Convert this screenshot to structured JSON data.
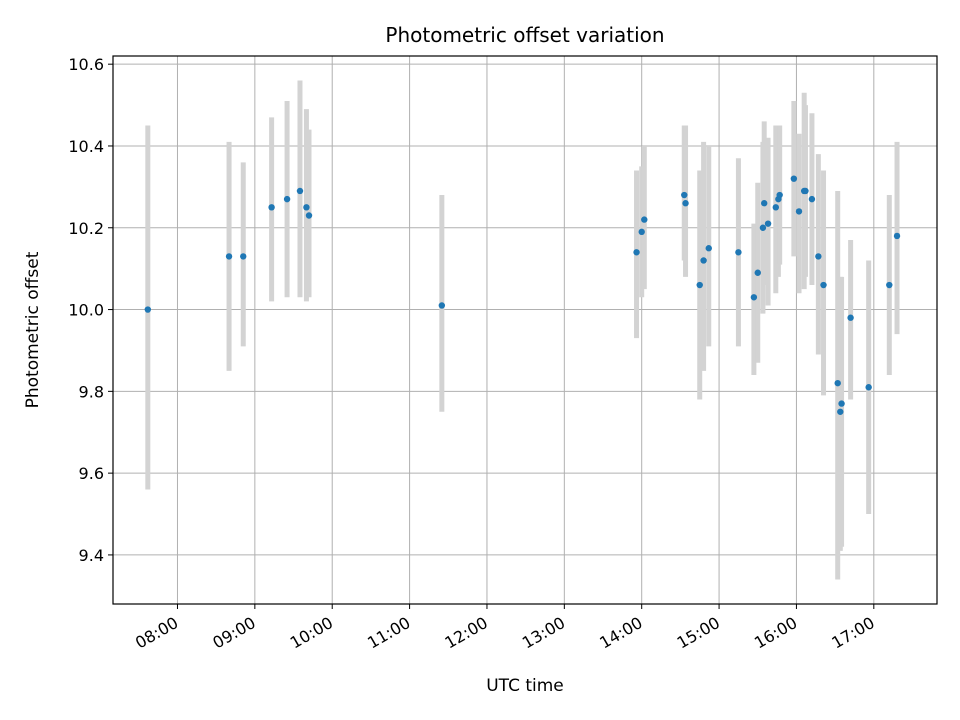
{
  "chart_data": {
    "type": "scatter",
    "title": "Photometric offset variation",
    "xlabel": "UTC time",
    "ylabel": "Photometric offset",
    "grid": true,
    "legend": "none",
    "x_tick_labels": [
      "08:00",
      "09:00",
      "10:00",
      "11:00",
      "12:00",
      "13:00",
      "14:00",
      "15:00",
      "16:00",
      "17:00"
    ],
    "y_tick_labels": [
      "9.4",
      "9.6",
      "9.8",
      "10.0",
      "10.2",
      "10.4",
      "10.6"
    ],
    "y_ticks": [
      9.4,
      9.6,
      9.8,
      10.0,
      10.2,
      10.4,
      10.6
    ],
    "xlim": [
      "07:10",
      "17:49"
    ],
    "ylim": [
      9.28,
      10.62
    ],
    "colors": {
      "point": "#1f77b4",
      "errorbar": "#d3d3d3",
      "grid": "#b0b0b0"
    },
    "points": [
      {
        "t": "07:37",
        "y": 10.0,
        "lo": 9.56,
        "hi": 10.45
      },
      {
        "t": "08:40",
        "y": 10.13,
        "lo": 9.85,
        "hi": 10.41
      },
      {
        "t": "08:51",
        "y": 10.13,
        "lo": 9.91,
        "hi": 10.36
      },
      {
        "t": "09:13",
        "y": 10.25,
        "lo": 10.02,
        "hi": 10.47
      },
      {
        "t": "09:25",
        "y": 10.27,
        "lo": 10.03,
        "hi": 10.51
      },
      {
        "t": "09:35",
        "y": 10.29,
        "lo": 10.03,
        "hi": 10.56
      },
      {
        "t": "09:40",
        "y": 10.25,
        "lo": 10.02,
        "hi": 10.49
      },
      {
        "t": "09:42",
        "y": 10.23,
        "lo": 10.03,
        "hi": 10.44
      },
      {
        "t": "11:25",
        "y": 10.01,
        "lo": 9.75,
        "hi": 10.28
      },
      {
        "t": "13:56",
        "y": 10.14,
        "lo": 9.93,
        "hi": 10.34
      },
      {
        "t": "14:00",
        "y": 10.19,
        "lo": 10.03,
        "hi": 10.35
      },
      {
        "t": "14:02",
        "y": 10.22,
        "lo": 10.05,
        "hi": 10.4
      },
      {
        "t": "14:33",
        "y": 10.28,
        "lo": 10.12,
        "hi": 10.45
      },
      {
        "t": "14:34",
        "y": 10.26,
        "lo": 10.08,
        "hi": 10.45
      },
      {
        "t": "14:45",
        "y": 10.06,
        "lo": 9.78,
        "hi": 10.34
      },
      {
        "t": "14:48",
        "y": 10.12,
        "lo": 9.85,
        "hi": 10.41
      },
      {
        "t": "14:52",
        "y": 10.15,
        "lo": 9.91,
        "hi": 10.4
      },
      {
        "t": "15:15",
        "y": 10.14,
        "lo": 9.91,
        "hi": 10.37
      },
      {
        "t": "15:27",
        "y": 10.03,
        "lo": 9.84,
        "hi": 10.21
      },
      {
        "t": "15:30",
        "y": 10.09,
        "lo": 9.87,
        "hi": 10.31
      },
      {
        "t": "15:34",
        "y": 10.2,
        "lo": 9.99,
        "hi": 10.41
      },
      {
        "t": "15:35",
        "y": 10.26,
        "lo": 10.06,
        "hi": 10.46
      },
      {
        "t": "15:38",
        "y": 10.21,
        "lo": 10.01,
        "hi": 10.42
      },
      {
        "t": "15:44",
        "y": 10.25,
        "lo": 10.04,
        "hi": 10.45
      },
      {
        "t": "15:46",
        "y": 10.27,
        "lo": 10.08,
        "hi": 10.45
      },
      {
        "t": "15:47",
        "y": 10.28,
        "lo": 10.11,
        "hi": 10.45
      },
      {
        "t": "15:58",
        "y": 10.32,
        "lo": 10.13,
        "hi": 10.51
      },
      {
        "t": "16:02",
        "y": 10.24,
        "lo": 10.04,
        "hi": 10.43
      },
      {
        "t": "16:06",
        "y": 10.29,
        "lo": 10.05,
        "hi": 10.53
      },
      {
        "t": "16:07",
        "y": 10.29,
        "lo": 10.08,
        "hi": 10.5
      },
      {
        "t": "16:12",
        "y": 10.27,
        "lo": 10.06,
        "hi": 10.48
      },
      {
        "t": "16:17",
        "y": 10.13,
        "lo": 9.89,
        "hi": 10.38
      },
      {
        "t": "16:21",
        "y": 10.06,
        "lo": 9.79,
        "hi": 10.34
      },
      {
        "t": "16:32",
        "y": 9.82,
        "lo": 9.34,
        "hi": 10.29
      },
      {
        "t": "16:35",
        "y": 9.77,
        "lo": 9.42,
        "hi": 10.08
      },
      {
        "t": "16:34",
        "y": 9.75,
        "lo": 9.41,
        "hi": 10.08
      },
      {
        "t": "16:42",
        "y": 9.98,
        "lo": 9.78,
        "hi": 10.17
      },
      {
        "t": "16:56",
        "y": 9.81,
        "lo": 9.5,
        "hi": 10.12
      },
      {
        "t": "17:12",
        "y": 10.06,
        "lo": 9.84,
        "hi": 10.28
      },
      {
        "t": "17:18",
        "y": 10.18,
        "lo": 9.94,
        "hi": 10.41
      }
    ]
  }
}
